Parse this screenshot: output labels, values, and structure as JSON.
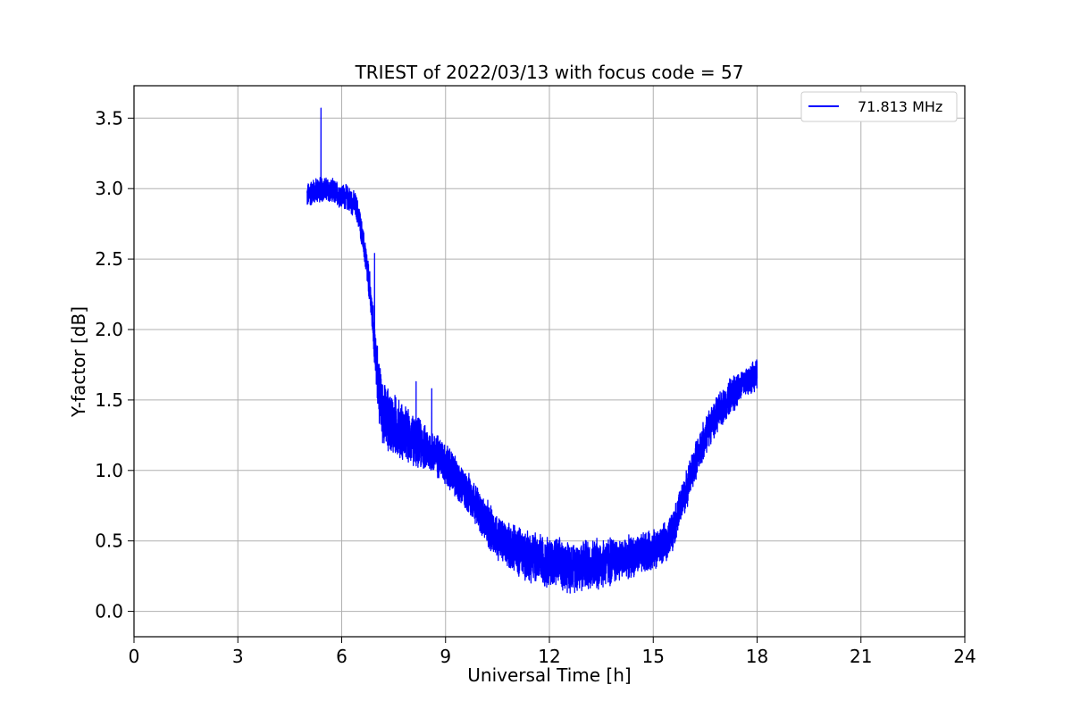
{
  "chart_data": {
    "type": "line",
    "title": "TRIEST of 2022/03/13 with focus code = 57",
    "xlabel": "Universal Time [h]",
    "ylabel": "Y-factor [dB]",
    "xlim": [
      0,
      24
    ],
    "ylim": [
      -0.18,
      3.73
    ],
    "xticks": [
      0,
      3,
      6,
      9,
      12,
      15,
      18,
      21,
      24
    ],
    "yticks": [
      0.0,
      0.5,
      1.0,
      1.5,
      2.0,
      2.5,
      3.0,
      3.5
    ],
    "grid": true,
    "legend_position": "top-right",
    "series": [
      {
        "name": "71.813 MHz",
        "color": "#0000ff",
        "x": [
          5.0,
          5.2,
          5.4,
          5.6,
          5.8,
          6.0,
          6.2,
          6.4,
          6.5,
          6.6,
          6.7,
          6.8,
          6.9,
          7.0,
          7.1,
          7.2,
          7.4,
          7.6,
          7.8,
          8.0,
          8.2,
          8.4,
          8.6,
          8.8,
          9.0,
          9.2,
          9.4,
          9.6,
          9.8,
          10.0,
          10.2,
          10.4,
          10.6,
          10.8,
          11.0,
          11.2,
          11.4,
          11.6,
          11.8,
          12.0,
          12.2,
          12.4,
          12.6,
          12.8,
          13.0,
          13.2,
          13.4,
          13.6,
          13.8,
          14.0,
          14.2,
          14.4,
          14.6,
          14.8,
          15.0,
          15.2,
          15.4,
          15.6,
          15.8,
          16.0,
          16.2,
          16.4,
          16.6,
          16.8,
          17.0,
          17.2,
          17.4,
          17.6,
          17.8,
          18.0
        ],
        "y": [
          2.95,
          2.98,
          3.0,
          2.99,
          2.97,
          2.95,
          2.93,
          2.88,
          2.8,
          2.65,
          2.5,
          2.3,
          2.05,
          1.75,
          1.52,
          1.4,
          1.35,
          1.3,
          1.27,
          1.22,
          1.2,
          1.16,
          1.13,
          1.1,
          1.05,
          0.98,
          0.9,
          0.85,
          0.8,
          0.7,
          0.62,
          0.56,
          0.5,
          0.47,
          0.44,
          0.42,
          0.4,
          0.38,
          0.37,
          0.35,
          0.34,
          0.33,
          0.32,
          0.32,
          0.33,
          0.33,
          0.34,
          0.35,
          0.36,
          0.37,
          0.38,
          0.39,
          0.4,
          0.42,
          0.44,
          0.46,
          0.5,
          0.6,
          0.75,
          0.9,
          1.05,
          1.18,
          1.3,
          1.38,
          1.45,
          1.52,
          1.57,
          1.62,
          1.65,
          1.68
        ],
        "noise_amplitude": [
          0.1,
          0.1,
          0.1,
          0.1,
          0.1,
          0.1,
          0.1,
          0.1,
          0.1,
          0.1,
          0.12,
          0.15,
          0.15,
          0.22,
          0.25,
          0.25,
          0.25,
          0.24,
          0.22,
          0.2,
          0.2,
          0.18,
          0.17,
          0.17,
          0.17,
          0.17,
          0.16,
          0.16,
          0.16,
          0.16,
          0.18,
          0.18,
          0.18,
          0.18,
          0.18,
          0.2,
          0.2,
          0.2,
          0.2,
          0.2,
          0.2,
          0.2,
          0.2,
          0.2,
          0.2,
          0.2,
          0.2,
          0.2,
          0.2,
          0.16,
          0.16,
          0.16,
          0.16,
          0.16,
          0.15,
          0.15,
          0.15,
          0.15,
          0.15,
          0.15,
          0.15,
          0.15,
          0.15,
          0.14,
          0.14,
          0.14,
          0.14,
          0.12,
          0.12,
          0.12
        ],
        "spikes": [
          {
            "x": 5.4,
            "y": 3.57
          },
          {
            "x": 6.95,
            "y": 2.54
          },
          {
            "x": 8.15,
            "y": 1.63
          },
          {
            "x": 8.6,
            "y": 1.58
          }
        ]
      }
    ]
  }
}
